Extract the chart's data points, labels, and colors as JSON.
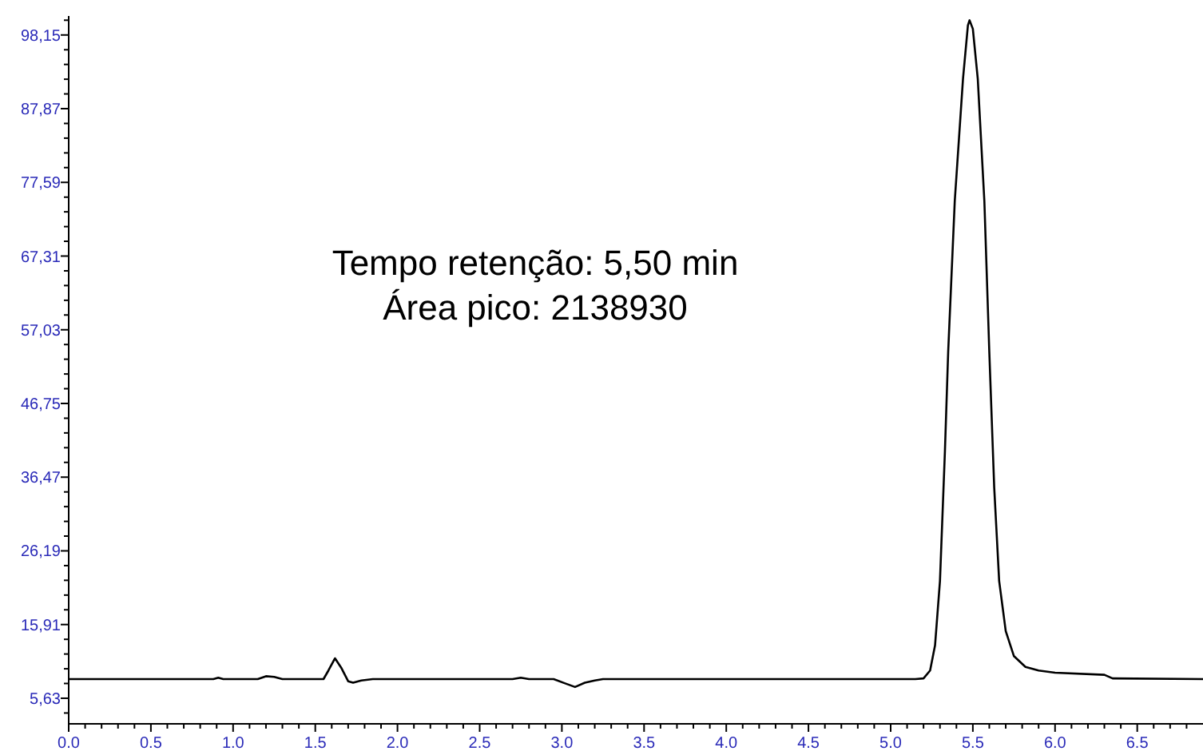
{
  "chart_data": {
    "type": "line",
    "annotations": [
      "Tempo retenção: 5,50 min\nÁrea pico: 2138930"
    ],
    "x": [
      0,
      0.88,
      0.91,
      0.94,
      1.15,
      1.2,
      1.25,
      1.3,
      1.55,
      1.58,
      1.62,
      1.66,
      1.7,
      1.73,
      1.78,
      1.85,
      2.7,
      2.75,
      2.8,
      2.95,
      3.02,
      3.08,
      3.14,
      3.2,
      3.25,
      5.15,
      5.2,
      5.24,
      5.27,
      5.3,
      5.33,
      5.35,
      5.39,
      5.44,
      5.47,
      5.48,
      5.5,
      5.53,
      5.57,
      5.6,
      5.63,
      5.66,
      5.7,
      5.75,
      5.82,
      5.9,
      6.0,
      6.3,
      6.35,
      6.9
    ],
    "series": [
      {
        "color": "#000000",
        "values": [
          8.3,
          8.3,
          8.5,
          8.3,
          8.3,
          8.7,
          8.6,
          8.3,
          8.3,
          9.5,
          11.2,
          9.8,
          8.0,
          7.8,
          8.1,
          8.3,
          8.3,
          8.5,
          8.3,
          8.3,
          7.7,
          7.2,
          7.8,
          8.1,
          8.3,
          8.3,
          8.4,
          9.5,
          13,
          22,
          40,
          54,
          75,
          92,
          99.5,
          100.2,
          99,
          92,
          75,
          54,
          35,
          22,
          15,
          11.5,
          10,
          9.5,
          9.2,
          8.9,
          8.4,
          8.3
        ]
      }
    ],
    "xlim": [
      0,
      6.9
    ],
    "ylim": [
      2.06,
      100.8
    ],
    "grid": false,
    "marker": "none",
    "line_style": "solid",
    "xticks": [
      {
        "value": 0,
        "label": "0.0"
      },
      {
        "value": 0.1,
        "label": null
      },
      {
        "value": 0.2,
        "label": null
      },
      {
        "value": 0.3,
        "label": null
      },
      {
        "value": 0.4,
        "label": null
      },
      {
        "value": 0.5,
        "label": "0.5"
      },
      {
        "value": 0.6,
        "label": null
      },
      {
        "value": 0.7,
        "label": null
      },
      {
        "value": 0.8,
        "label": null
      },
      {
        "value": 0.9,
        "label": null
      },
      {
        "value": 1,
        "label": "1.0"
      },
      {
        "value": 1.1,
        "label": null
      },
      {
        "value": 1.2,
        "label": null
      },
      {
        "value": 1.3,
        "label": null
      },
      {
        "value": 1.4,
        "label": null
      },
      {
        "value": 1.5,
        "label": "1.5"
      },
      {
        "value": 1.6,
        "label": null
      },
      {
        "value": 1.7,
        "label": null
      },
      {
        "value": 1.8,
        "label": null
      },
      {
        "value": 1.9,
        "label": null
      },
      {
        "value": 2,
        "label": "2.0"
      },
      {
        "value": 2.1,
        "label": null
      },
      {
        "value": 2.2,
        "label": null
      },
      {
        "value": 2.3,
        "label": null
      },
      {
        "value": 2.4,
        "label": null
      },
      {
        "value": 2.5,
        "label": "2.5"
      },
      {
        "value": 2.6,
        "label": null
      },
      {
        "value": 2.7,
        "label": null
      },
      {
        "value": 2.8,
        "label": null
      },
      {
        "value": 2.9,
        "label": null
      },
      {
        "value": 3,
        "label": "3.0"
      },
      {
        "value": 3.1,
        "label": null
      },
      {
        "value": 3.2,
        "label": null
      },
      {
        "value": 3.3,
        "label": null
      },
      {
        "value": 3.4,
        "label": null
      },
      {
        "value": 3.5,
        "label": "3.5"
      },
      {
        "value": 3.6,
        "label": null
      },
      {
        "value": 3.7,
        "label": null
      },
      {
        "value": 3.8,
        "label": null
      },
      {
        "value": 3.9,
        "label": null
      },
      {
        "value": 4,
        "label": "4.0"
      },
      {
        "value": 4.1,
        "label": null
      },
      {
        "value": 4.2,
        "label": null
      },
      {
        "value": 4.3,
        "label": null
      },
      {
        "value": 4.4,
        "label": null
      },
      {
        "value": 4.5,
        "label": "4.5"
      },
      {
        "value": 4.6,
        "label": null
      },
      {
        "value": 4.7,
        "label": null
      },
      {
        "value": 4.8,
        "label": null
      },
      {
        "value": 4.9,
        "label": null
      },
      {
        "value": 5,
        "label": "5.0"
      },
      {
        "value": 5.1,
        "label": null
      },
      {
        "value": 5.2,
        "label": null
      },
      {
        "value": 5.3,
        "label": null
      },
      {
        "value": 5.4,
        "label": null
      },
      {
        "value": 5.5,
        "label": "5.5"
      },
      {
        "value": 5.6,
        "label": null
      },
      {
        "value": 5.7,
        "label": null
      },
      {
        "value": 5.8,
        "label": null
      },
      {
        "value": 5.9,
        "label": null
      },
      {
        "value": 6,
        "label": "6.0"
      },
      {
        "value": 6.1,
        "label": null
      },
      {
        "value": 6.2,
        "label": null
      },
      {
        "value": 6.3,
        "label": null
      },
      {
        "value": 6.4,
        "label": null
      },
      {
        "value": 6.5,
        "label": "6.5"
      },
      {
        "value": 6.6,
        "label": null
      },
      {
        "value": 6.7,
        "label": null
      },
      {
        "value": 6.8,
        "label": null
      }
    ],
    "yticks": [
      {
        "value": 3.57,
        "label": null
      },
      {
        "value": 5.63,
        "label": "5,63"
      },
      {
        "value": 7.69,
        "label": null
      },
      {
        "value": 9.74,
        "label": null
      },
      {
        "value": 11.8,
        "label": null
      },
      {
        "value": 13.85,
        "label": null
      },
      {
        "value": 15.91,
        "label": "15,91"
      },
      {
        "value": 17.97,
        "label": null
      },
      {
        "value": 20.02,
        "label": null
      },
      {
        "value": 22.08,
        "label": null
      },
      {
        "value": 24.13,
        "label": null
      },
      {
        "value": 26.19,
        "label": "26,19"
      },
      {
        "value": 28.25,
        "label": null
      },
      {
        "value": 30.3,
        "label": null
      },
      {
        "value": 32.36,
        "label": null
      },
      {
        "value": 34.41,
        "label": null
      },
      {
        "value": 36.47,
        "label": "36,47"
      },
      {
        "value": 38.53,
        "label": null
      },
      {
        "value": 40.58,
        "label": null
      },
      {
        "value": 42.64,
        "label": null
      },
      {
        "value": 44.69,
        "label": null
      },
      {
        "value": 46.75,
        "label": "46,75"
      },
      {
        "value": 48.81,
        "label": null
      },
      {
        "value": 50.86,
        "label": null
      },
      {
        "value": 52.92,
        "label": null
      },
      {
        "value": 54.97,
        "label": null
      },
      {
        "value": 57.03,
        "label": "57,03"
      },
      {
        "value": 59.09,
        "label": null
      },
      {
        "value": 61.14,
        "label": null
      },
      {
        "value": 63.2,
        "label": null
      },
      {
        "value": 65.25,
        "label": null
      },
      {
        "value": 67.31,
        "label": "67,31"
      },
      {
        "value": 69.37,
        "label": null
      },
      {
        "value": 71.42,
        "label": null
      },
      {
        "value": 73.48,
        "label": null
      },
      {
        "value": 75.53,
        "label": null
      },
      {
        "value": 77.59,
        "label": "77,59"
      },
      {
        "value": 79.65,
        "label": null
      },
      {
        "value": 81.7,
        "label": null
      },
      {
        "value": 83.76,
        "label": null
      },
      {
        "value": 85.81,
        "label": null
      },
      {
        "value": 87.87,
        "label": "87,87"
      },
      {
        "value": 89.93,
        "label": null
      },
      {
        "value": 91.98,
        "label": null
      },
      {
        "value": 94.04,
        "label": null
      },
      {
        "value": 96.09,
        "label": null
      },
      {
        "value": 98.15,
        "label": "98,15"
      },
      {
        "value": 100.21,
        "label": null
      }
    ]
  }
}
